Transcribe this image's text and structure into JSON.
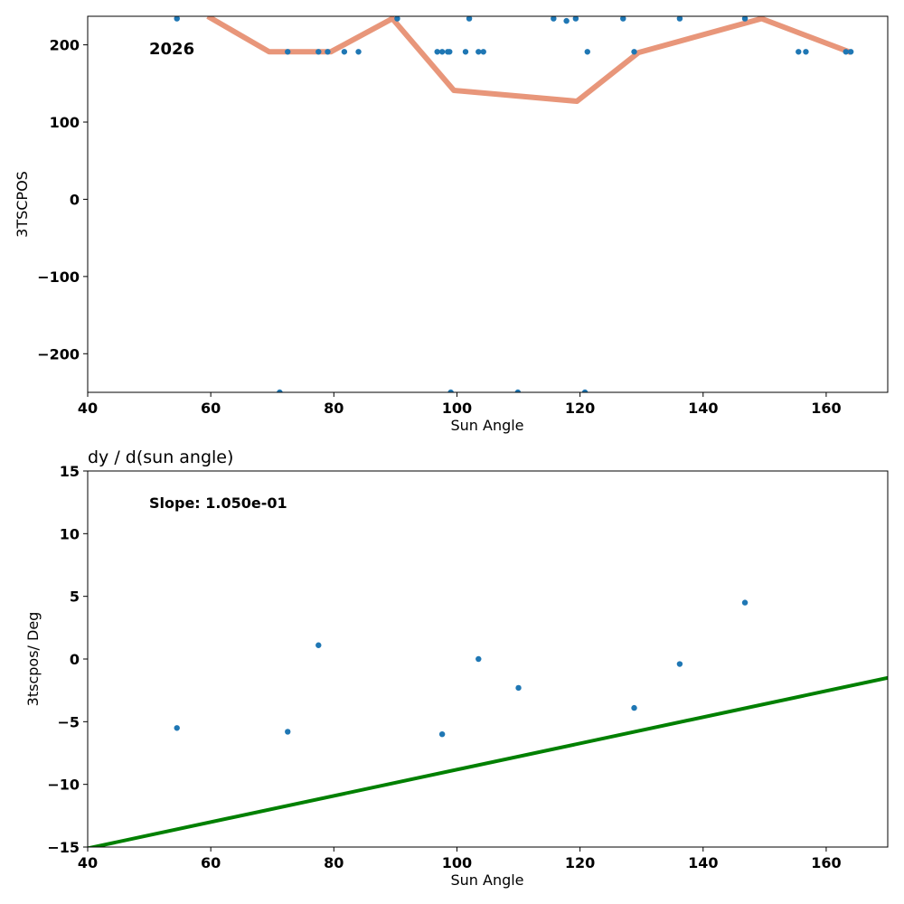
{
  "chart_data": [
    {
      "type": "scatter",
      "title": "",
      "xlabel": "Sun Angle",
      "ylabel": "3TSCPOS",
      "xlim": [
        40,
        170
      ],
      "ylim": [
        -250,
        237
      ],
      "xticks": [
        40,
        60,
        80,
        100,
        120,
        140,
        160
      ],
      "yticks": [
        -200,
        -100,
        0,
        100,
        200
      ],
      "annotation": "2026",
      "grid": false,
      "colors": {
        "points": "#1f77b4",
        "line": "#e8967a"
      },
      "series": [
        {
          "kind": "scatter",
          "points": [
            [
              54.5,
              234
            ],
            [
              72.5,
              191
            ],
            [
              77.5,
              191
            ],
            [
              79,
              191
            ],
            [
              81.7,
              191
            ],
            [
              84,
              191
            ],
            [
              90.3,
              234
            ],
            [
              96.8,
              191
            ],
            [
              97.6,
              191
            ],
            [
              98.5,
              191
            ],
            [
              98.8,
              191
            ],
            [
              101.4,
              191
            ],
            [
              102,
              234
            ],
            [
              103.5,
              191
            ],
            [
              104.3,
              191
            ],
            [
              115.7,
              234
            ],
            [
              117.8,
              231
            ],
            [
              119.3,
              234
            ],
            [
              121.2,
              191
            ],
            [
              127,
              234
            ],
            [
              128.8,
              191
            ],
            [
              136.2,
              234
            ],
            [
              146.8,
              234
            ],
            [
              155.5,
              191
            ],
            [
              156.7,
              191
            ],
            [
              163.2,
              191
            ],
            [
              164,
              191
            ],
            [
              71.2,
              -250
            ],
            [
              99,
              -250
            ],
            [
              109.9,
              -250
            ],
            [
              120.8,
              -250
            ]
          ]
        },
        {
          "kind": "line",
          "points": [
            [
              59.5,
              237
            ],
            [
              69.5,
              191
            ],
            [
              79.5,
              191
            ],
            [
              89.5,
              234
            ],
            [
              99.5,
              141
            ],
            [
              119.5,
              127
            ],
            [
              129.5,
              190
            ],
            [
              149.5,
              234
            ],
            [
              164,
              190
            ]
          ]
        }
      ]
    },
    {
      "type": "scatter",
      "title": "dy / d(sun angle)",
      "xlabel": "Sun Angle",
      "ylabel": "3tscpos/ Deg",
      "xlim": [
        40,
        170
      ],
      "ylim": [
        -15,
        15
      ],
      "xticks": [
        40,
        60,
        80,
        100,
        120,
        140,
        160
      ],
      "yticks": [
        -15,
        -10,
        -5,
        0,
        5,
        10,
        15
      ],
      "annotation": "Slope: 1.050e-01",
      "grid": false,
      "colors": {
        "points": "#1f77b4",
        "line": "#008000"
      },
      "series": [
        {
          "kind": "scatter",
          "points": [
            [
              54.5,
              -5.5
            ],
            [
              72.5,
              -5.8
            ],
            [
              77.5,
              1.1
            ],
            [
              97.6,
              -6.0
            ],
            [
              103.5,
              0.0
            ],
            [
              110,
              -2.3
            ],
            [
              128.8,
              -3.9
            ],
            [
              136.2,
              -0.4
            ],
            [
              146.8,
              4.5
            ]
          ]
        },
        {
          "kind": "line",
          "points": [
            [
              40,
              -15.1
            ],
            [
              170,
              -1.5
            ]
          ]
        }
      ]
    }
  ]
}
